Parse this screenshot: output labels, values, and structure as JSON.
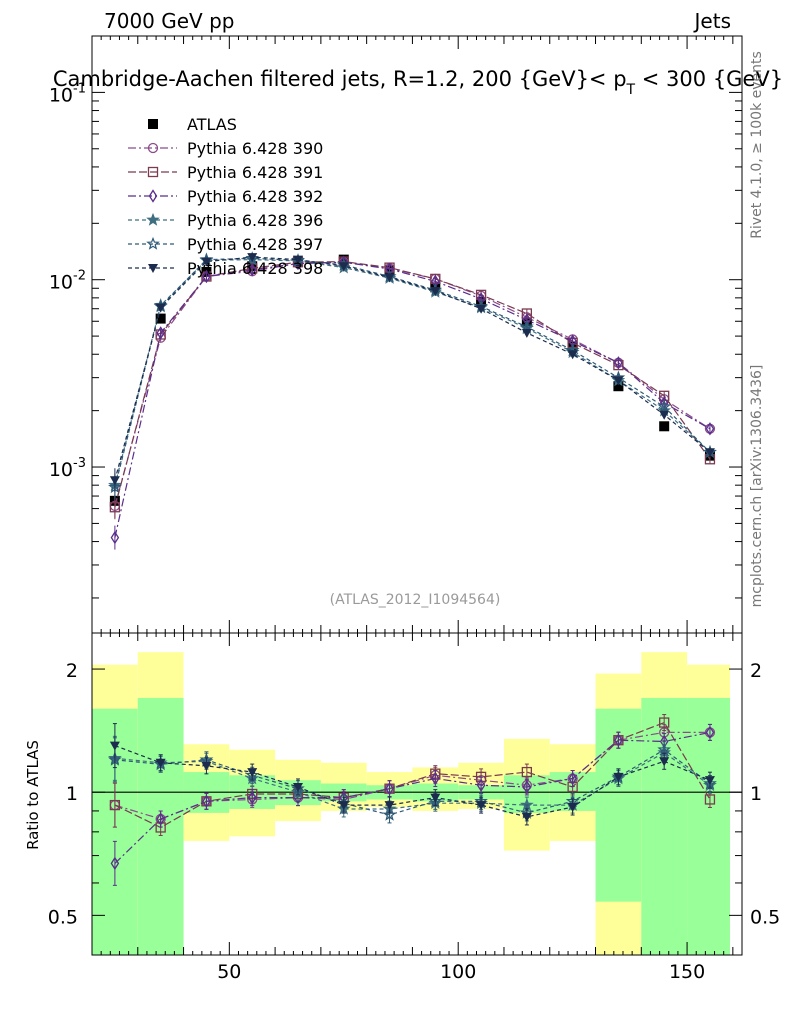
{
  "header": {
    "left": "7000 GeV pp",
    "right": "Jets"
  },
  "side_labels": {
    "rivet": "Rivet 4.1.0, ≥ 100k events",
    "mcplots": "mcplots.cern.ch [arXiv:1306.3436]"
  },
  "colors": {
    "atlas": "#000000",
    "band_inner": "#99ff99",
    "band_outer": "#ffff99",
    "unity_line": "#000000"
  },
  "chart_data": [
    {
      "type": "line",
      "panel": "main",
      "title": "Cambridge-Aachen filtered jets, R=1.2, 200 {GeV}< p_T < 300 {GeV}",
      "title_main": "Cambridge-Aachen filtered jets, R=1.2, 200 {GeV}< p",
      "title_sub": "T",
      "title_tail": " < 300 {GeV}",
      "analysis_tag": "(ATLAS_2012_I1094564)",
      "yscale": "log",
      "ylim": [
        0.00013,
        0.2
      ],
      "xlim": [
        20,
        162
      ],
      "ytick_labels": [
        {
          "base": "10",
          "exp": "-1",
          "value": 0.1
        },
        {
          "base": "10",
          "exp": "-2",
          "value": 0.01
        },
        {
          "base": "10",
          "exp": "-3",
          "value": 0.001
        }
      ],
      "legend_position": "top-left",
      "x": [
        25,
        35,
        45,
        55,
        65,
        75,
        85,
        95,
        105,
        115,
        125,
        135,
        145,
        155
      ],
      "series": [
        {
          "name": "ATLAS",
          "marker": "square-filled",
          "color": "#000000",
          "dash": "",
          "values": [
            0.00066,
            0.0062,
            0.011,
            0.0118,
            0.0125,
            0.0128,
            0.0112,
            0.0091,
            0.0076,
            0.0059,
            0.0044,
            0.0027,
            0.00165,
            0.00115
          ]
        },
        {
          "name": "Pythia 6.428 390",
          "marker": "circle-open",
          "color": "#8c4b8c",
          "dash": "8,3,2,3",
          "values": [
            0.00062,
            0.0049,
            0.0104,
            0.0111,
            0.0122,
            0.0124,
            0.0115,
            0.0101,
            0.0082,
            0.0063,
            0.0048,
            0.0036,
            0.0023,
            0.0016
          ]
        },
        {
          "name": "Pythia 6.428 391",
          "marker": "square-open",
          "color": "#7a3a4f",
          "dash": "8,3",
          "values": [
            0.00061,
            0.0051,
            0.0104,
            0.0115,
            0.0124,
            0.0125,
            0.0116,
            0.0101,
            0.0083,
            0.0066,
            0.0046,
            0.0035,
            0.0024,
            0.0011
          ]
        },
        {
          "name": "Pythia 6.428 392",
          "marker": "diamond-open",
          "color": "#5a2e8c",
          "dash": "8,3,2,3",
          "values": [
            0.00042,
            0.0052,
            0.0104,
            0.0113,
            0.0122,
            0.0124,
            0.0114,
            0.0098,
            0.0079,
            0.0061,
            0.0047,
            0.0036,
            0.0022,
            0.0016
          ]
        },
        {
          "name": "Pythia 6.428 396",
          "marker": "star-filled",
          "color": "#3f6f80",
          "dash": "4,3",
          "values": [
            0.0008,
            0.0073,
            0.0127,
            0.0128,
            0.0126,
            0.0116,
            0.0102,
            0.0086,
            0.0071,
            0.0055,
            0.0041,
            0.0029,
            0.002,
            0.0012
          ]
        },
        {
          "name": "Pythia 6.428 397",
          "marker": "star-open",
          "color": "#2e5a77",
          "dash": "4,3",
          "values": [
            0.00078,
            0.0072,
            0.0128,
            0.013,
            0.0127,
            0.012,
            0.0104,
            0.0088,
            0.0072,
            0.0056,
            0.0042,
            0.003,
            0.0021,
            0.0012
          ]
        },
        {
          "name": "Pythia 6.428 398",
          "marker": "triangle-down-filled",
          "color": "#1c2c4f",
          "dash": "4,3",
          "values": [
            0.00085,
            0.0071,
            0.0125,
            0.0132,
            0.0128,
            0.0118,
            0.0103,
            0.0087,
            0.007,
            0.0052,
            0.004,
            0.0029,
            0.0019,
            0.0012
          ]
        }
      ]
    },
    {
      "type": "line",
      "panel": "ratio",
      "ylabel": "Ratio to ATLAS",
      "yscale": "log",
      "ylim": [
        0.4,
        2.45
      ],
      "xlim": [
        20,
        162
      ],
      "yticks": [
        0.5,
        1,
        2
      ],
      "ytick_labels": [
        "0.5",
        "1",
        "2"
      ],
      "xticks": [
        50,
        100,
        150
      ],
      "xtick_labels": [
        "50",
        "100",
        "150"
      ],
      "bands": {
        "x_edges": [
          20,
          30,
          40,
          50,
          60,
          70,
          80,
          90,
          100,
          110,
          120,
          130,
          140,
          150,
          160
        ],
        "inner_low": [
          0.4,
          0.4,
          0.89,
          0.91,
          0.93,
          0.95,
          0.96,
          0.95,
          0.96,
          0.89,
          0.9,
          0.54,
          0.4,
          0.4
        ],
        "inner_high": [
          1.6,
          1.7,
          1.12,
          1.1,
          1.07,
          1.05,
          1.04,
          1.05,
          1.04,
          1.1,
          1.12,
          1.6,
          1.7,
          1.7
        ],
        "outer_low": [
          0.46,
          0.4,
          0.76,
          0.78,
          0.85,
          0.9,
          0.92,
          0.9,
          0.91,
          0.72,
          0.76,
          0.4,
          0.54,
          0.46
        ],
        "outer_high": [
          2.05,
          2.2,
          1.31,
          1.27,
          1.2,
          1.18,
          1.12,
          1.15,
          1.18,
          1.35,
          1.31,
          1.95,
          2.2,
          2.05
        ]
      },
      "x": [
        25,
        35,
        45,
        55,
        65,
        75,
        85,
        95,
        105,
        115,
        125,
        135,
        145,
        155
      ],
      "series": [
        {
          "name": "Pythia 6.428 390",
          "values": [
            0.93,
            0.86,
            0.95,
            0.96,
            0.97,
            0.96,
            1.02,
            1.1,
            1.07,
            1.04,
            1.08,
            1.34,
            1.4,
            1.4
          ]
        },
        {
          "name": "Pythia 6.428 391",
          "values": [
            0.93,
            0.82,
            0.95,
            0.99,
            0.99,
            0.97,
            1.02,
            1.11,
            1.09,
            1.12,
            1.03,
            1.34,
            1.48,
            0.96
          ]
        },
        {
          "name": "Pythia 6.428 392",
          "values": [
            0.67,
            0.86,
            0.95,
            0.97,
            0.97,
            0.97,
            1.02,
            1.08,
            1.04,
            1.03,
            1.08,
            1.34,
            1.33,
            1.4
          ]
        },
        {
          "name": "Pythia 6.428 396",
          "values": [
            1.21,
            1.18,
            1.19,
            1.08,
            1.0,
            0.91,
            0.91,
            0.94,
            0.94,
            0.93,
            0.93,
            1.08,
            1.25,
            1.04
          ]
        },
        {
          "name": "Pythia 6.428 397",
          "values": [
            1.2,
            1.17,
            1.2,
            1.1,
            1.02,
            0.94,
            0.88,
            0.95,
            0.95,
            0.89,
            0.95,
            1.09,
            1.27,
            1.05
          ]
        },
        {
          "name": "Pythia 6.428 398",
          "values": [
            1.3,
            1.18,
            1.16,
            1.12,
            1.03,
            0.93,
            0.93,
            0.97,
            0.93,
            0.87,
            0.92,
            1.09,
            1.19,
            1.07
          ]
        }
      ]
    }
  ]
}
